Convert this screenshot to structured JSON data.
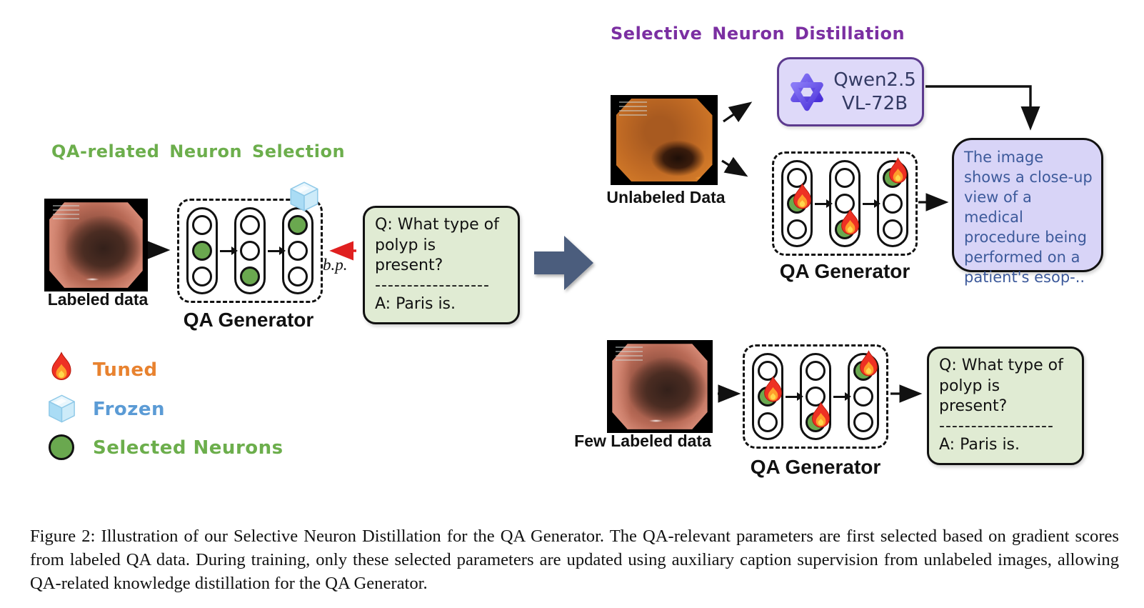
{
  "figure": {
    "left": {
      "title": "QA-related Neuron Selection",
      "image_label": "Labeled data",
      "generator_label": "QA Generator",
      "bp_label": "b.p.",
      "qa_box": {
        "question": "Q: What type of polyp is present?",
        "divider": "------------------",
        "answer": "A: Paris is."
      }
    },
    "right": {
      "title": "Selective Neuron Distillation",
      "unlabeled_label": "Unlabeled Data",
      "qwen": {
        "line1": "Qwen2.5",
        "line2": "VL-72B"
      },
      "caption_text": "The image shows a close-up view of a medical procedure being performed on a patient's esop-..",
      "generator_top_label": "QA Generator",
      "few_labeled_label": "Few Labeled data",
      "generator_bottom_label": "QA Generator",
      "qa_box": {
        "question": "Q: What type of polyp is present?",
        "divider": "------------------",
        "answer": "A: Paris is."
      }
    },
    "legend": {
      "tuned": "Tuned",
      "frozen": "Frozen",
      "selected": "Selected Neurons"
    },
    "caption": "Figure 2: Illustration of our Selective Neuron Distillation for the QA Generator. The QA-relevant parameters are first selected based on gradient scores from labeled QA data. During training, only these selected parameters are updated using auxiliary caption supervision from unlabeled images, allowing QA-related knowledge distillation for the QA Generator."
  },
  "generators": {
    "selection": {
      "columns": [
        [
          "plain",
          "selected",
          "plain"
        ],
        [
          "plain",
          "plain",
          "selected"
        ],
        [
          "selected",
          "plain",
          "plain"
        ]
      ]
    },
    "distill_top": {
      "columns": [
        [
          "plain",
          "tuned",
          "plain"
        ],
        [
          "plain",
          "plain",
          "tuned"
        ],
        [
          "tuned",
          "plain",
          "plain"
        ]
      ]
    },
    "distill_bottom": {
      "columns": [
        [
          "plain",
          "tuned",
          "plain"
        ],
        [
          "plain",
          "plain",
          "tuned"
        ],
        [
          "tuned",
          "plain",
          "plain"
        ]
      ]
    }
  },
  "colors": {
    "accent_green": "#6cae4c",
    "accent_purple": "#7b2fa2",
    "tuned_orange": "#e8822f",
    "frozen_blue": "#5b9bd5",
    "neuron_green": "#6aa84f",
    "qa_box_bg": "#e0ebd3",
    "caption_box_bg": "#d8d4f7",
    "caption_text": "#3d5a9b",
    "qwen_box_bg": "#ded9f9",
    "qwen_border": "#5c3a8e",
    "big_arrow": "#4b5d7d",
    "bp_red": "#e02020"
  }
}
